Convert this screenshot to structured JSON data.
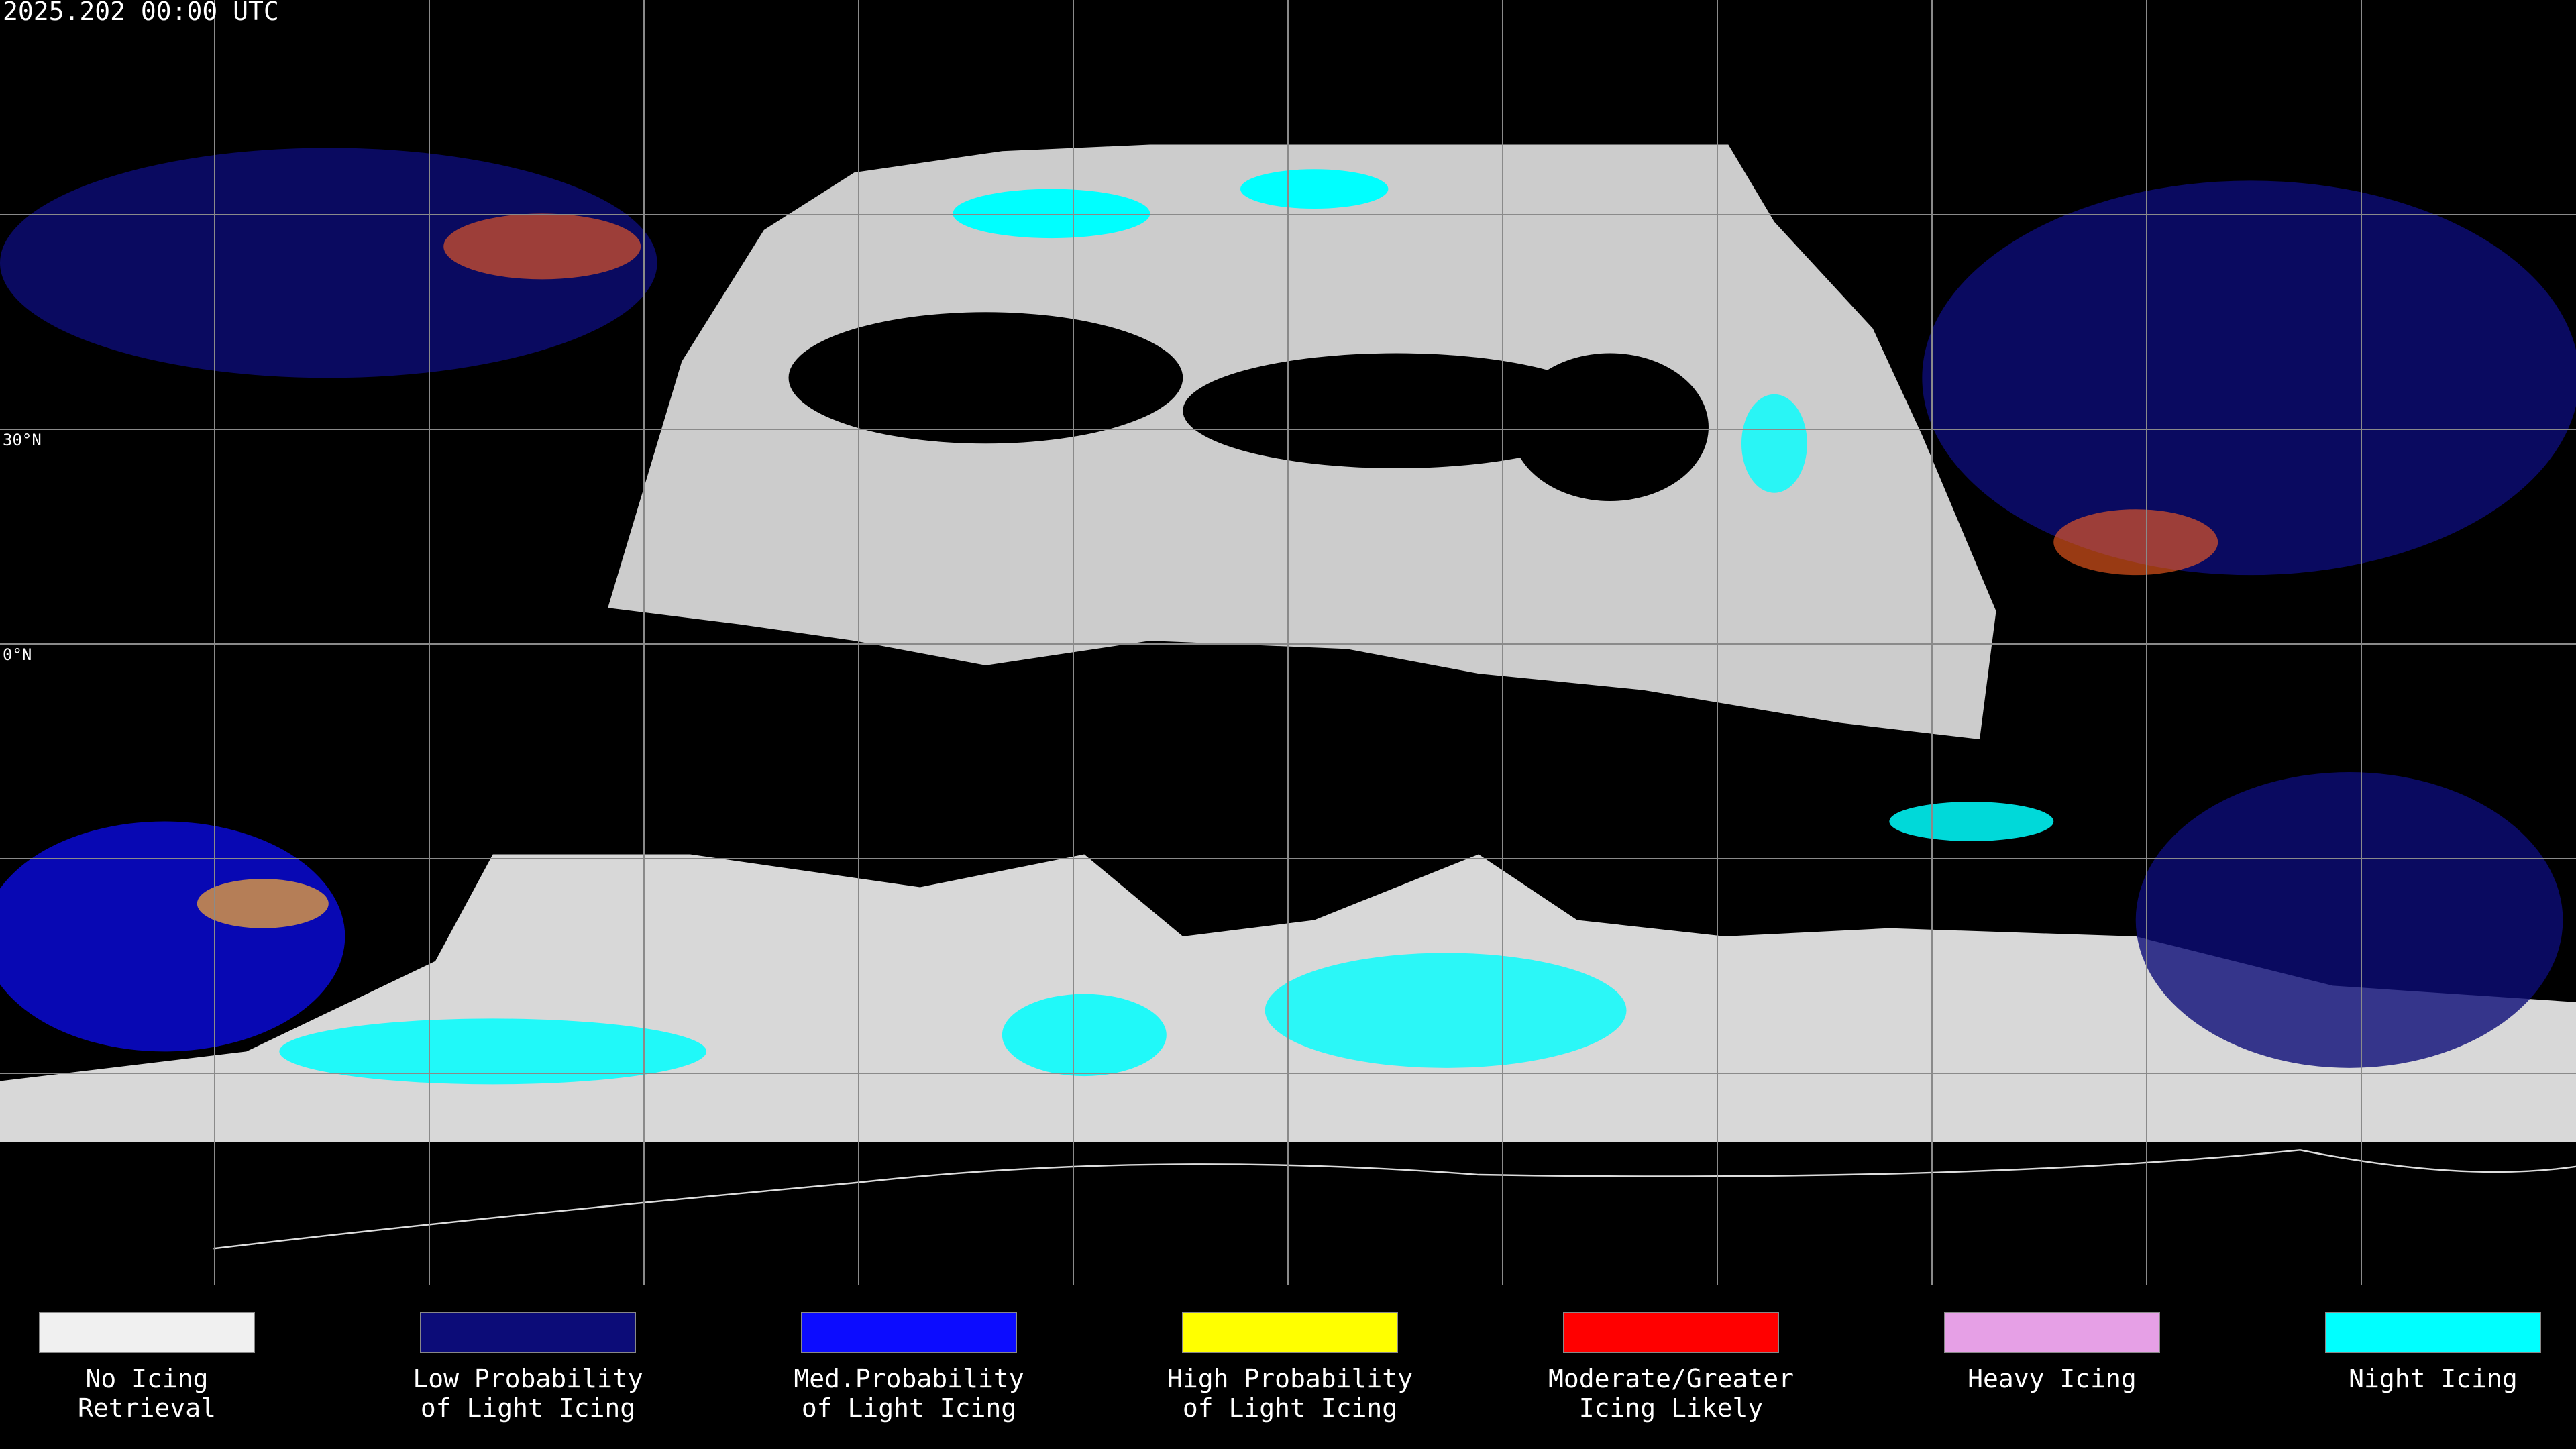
{
  "header": {
    "timestamp": "2025.202 00:00 UTC"
  },
  "map": {
    "lat_labels": [
      "30°N",
      "0°N"
    ]
  },
  "legend": {
    "items": [
      {
        "label_lines": [
          "No Icing",
          "Retrieval"
        ],
        "color": "#f0f0f0"
      },
      {
        "label_lines": [
          "Low Probability",
          "of Light Icing"
        ],
        "color": "#0c0c78"
      },
      {
        "label_lines": [
          "Med.Probability",
          "of Light Icing"
        ],
        "color": "#0c0cff"
      },
      {
        "label_lines": [
          "High Probability",
          "of Light Icing"
        ],
        "color": "#ffff00"
      },
      {
        "label_lines": [
          "Moderate/Greater",
          "Icing Likely"
        ],
        "color": "#ff0000"
      },
      {
        "label_lines": [
          "Heavy Icing"
        ],
        "color": "#e6a0e6"
      },
      {
        "label_lines": [
          "Night Icing"
        ],
        "color": "#00ffff"
      }
    ]
  }
}
